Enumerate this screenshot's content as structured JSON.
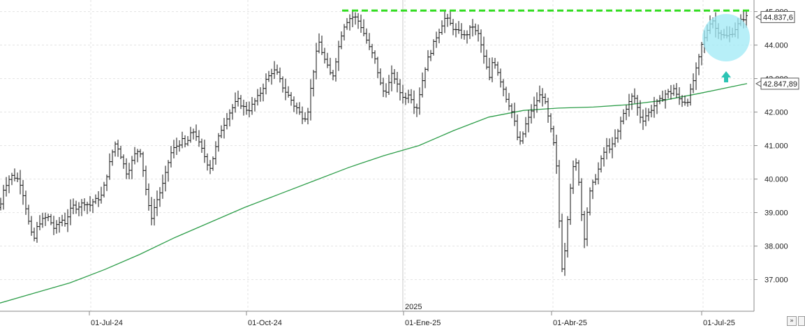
{
  "chart_data": {
    "type": "bar",
    "subtype": "ohlc",
    "title": "",
    "xlabel": "",
    "ylabel": "",
    "ylim": [
      36000,
      45000
    ],
    "y_ticks": [
      {
        "value": 37000,
        "label": "37.000"
      },
      {
        "value": 38000,
        "label": "38.000"
      },
      {
        "value": 39000,
        "label": "39.000"
      },
      {
        "value": 40000,
        "label": "40.000"
      },
      {
        "value": 41000,
        "label": "41.000"
      },
      {
        "value": 42000,
        "label": "42.000"
      },
      {
        "value": 43000,
        "label": "43.000"
      },
      {
        "value": 44000,
        "label": "44.000"
      },
      {
        "value": 45000,
        "label": "45.000"
      }
    ],
    "x_ticks": [
      "01-Jul-24",
      "01-Oct-24",
      "01-Ene-25",
      "01-Abr-25",
      "01-Jul-25"
    ],
    "year_label": "2025",
    "last_price": {
      "value": 44837.6,
      "label": "44.837,6"
    },
    "moving_average": {
      "value": 42847.89,
      "label": "42.847,89",
      "color": "#2e9e4a"
    },
    "resistance_level": {
      "value": 45000,
      "color": "#33dd22"
    },
    "price_color": "#111111",
    "highlight_circle_color": "#9fe9f5",
    "arrow_color": "#2cc4b4",
    "grid": true,
    "price_path": [
      [
        0,
        39150
      ],
      [
        5,
        39700
      ],
      [
        10,
        39900
      ],
      [
        16,
        40100
      ],
      [
        22,
        40050
      ],
      [
        28,
        39950
      ],
      [
        33,
        39550
      ],
      [
        38,
        39050
      ],
      [
        43,
        38500
      ],
      [
        48,
        38150
      ],
      [
        53,
        38550
      ],
      [
        58,
        38750
      ],
      [
        63,
        38800
      ],
      [
        68,
        38900
      ],
      [
        73,
        38700
      ],
      [
        78,
        38500
      ],
      [
        83,
        38650
      ],
      [
        88,
        38800
      ],
      [
        93,
        38700
      ],
      [
        98,
        38950
      ],
      [
        104,
        39200
      ],
      [
        110,
        39150
      ],
      [
        116,
        39250
      ],
      [
        122,
        39300
      ],
      [
        128,
        39200
      ],
      [
        134,
        39350
      ],
      [
        140,
        39400
      ],
      [
        145,
        39500
      ],
      [
        150,
        39850
      ],
      [
        155,
        40300
      ],
      [
        160,
        40750
      ],
      [
        165,
        41050
      ],
      [
        170,
        40900
      ],
      [
        176,
        40500
      ],
      [
        181,
        40200
      ],
      [
        186,
        40350
      ],
      [
        191,
        40650
      ],
      [
        196,
        40850
      ],
      [
        201,
        40800
      ],
      [
        206,
        40150
      ],
      [
        211,
        39400
      ],
      [
        216,
        38800
      ],
      [
        221,
        39150
      ],
      [
        226,
        39450
      ],
      [
        231,
        39700
      ],
      [
        236,
        40050
      ],
      [
        241,
        40500
      ],
      [
        246,
        40850
      ],
      [
        251,
        40950
      ],
      [
        256,
        41050
      ],
      [
        261,
        41150
      ],
      [
        266,
        41000
      ],
      [
        271,
        41250
      ],
      [
        276,
        41450
      ],
      [
        281,
        41300
      ],
      [
        286,
        41000
      ],
      [
        291,
        40800
      ],
      [
        296,
        40500
      ],
      [
        301,
        40350
      ],
      [
        306,
        40700
      ],
      [
        311,
        41100
      ],
      [
        316,
        41450
      ],
      [
        321,
        41650
      ],
      [
        326,
        41900
      ],
      [
        331,
        42050
      ],
      [
        336,
        42250
      ],
      [
        341,
        42350
      ],
      [
        346,
        42200
      ],
      [
        351,
        42100
      ],
      [
        356,
        42050
      ],
      [
        361,
        42200
      ],
      [
        366,
        42350
      ],
      [
        371,
        42500
      ],
      [
        376,
        42700
      ],
      [
        381,
        42950
      ],
      [
        386,
        43100
      ],
      [
        391,
        43250
      ],
      [
        396,
        43200
      ],
      [
        401,
        42950
      ],
      [
        406,
        42700
      ],
      [
        411,
        42550
      ],
      [
        416,
        42400
      ],
      [
        421,
        42200
      ],
      [
        426,
        42100
      ],
      [
        431,
        41900
      ],
      [
        436,
        41800
      ],
      [
        441,
        42050
      ],
      [
        446,
        42850
      ],
      [
        451,
        43500
      ],
      [
        456,
        44150
      ],
      [
        461,
        43800
      ],
      [
        466,
        43500
      ],
      [
        471,
        43250
      ],
      [
        476,
        43000
      ],
      [
        481,
        43550
      ],
      [
        486,
        44050
      ],
      [
        491,
        44500
      ],
      [
        496,
        44700
      ],
      [
        501,
        44800
      ],
      [
        506,
        44850
      ],
      [
        511,
        44800
      ],
      [
        516,
        44600
      ],
      [
        521,
        44350
      ],
      [
        526,
        44100
      ],
      [
        531,
        43800
      ],
      [
        536,
        43650
      ],
      [
        541,
        43200
      ],
      [
        546,
        42750
      ],
      [
        551,
        42550
      ],
      [
        556,
        42800
      ],
      [
        561,
        43100
      ],
      [
        566,
        43000
      ],
      [
        571,
        42650
      ],
      [
        576,
        42500
      ],
      [
        581,
        42400
      ],
      [
        586,
        42600
      ],
      [
        591,
        42300
      ],
      [
        596,
        42050
      ],
      [
        601,
        42550
      ],
      [
        606,
        43050
      ],
      [
        611,
        43500
      ],
      [
        616,
        43750
      ],
      [
        621,
        44050
      ],
      [
        626,
        44300
      ],
      [
        631,
        44500
      ],
      [
        636,
        44800
      ],
      [
        641,
        44750
      ],
      [
        646,
        44600
      ],
      [
        651,
        44450
      ],
      [
        656,
        44400
      ],
      [
        661,
        44350
      ],
      [
        666,
        44250
      ],
      [
        671,
        44400
      ],
      [
        676,
        44600
      ],
      [
        681,
        44400
      ],
      [
        686,
        44300
      ],
      [
        691,
        43800
      ],
      [
        696,
        43400
      ],
      [
        701,
        43000
      ],
      [
        706,
        43600
      ],
      [
        711,
        43350
      ],
      [
        716,
        43000
      ],
      [
        721,
        42700
      ],
      [
        726,
        42350
      ],
      [
        731,
        42150
      ],
      [
        736,
        41800
      ],
      [
        741,
        41250
      ],
      [
        746,
        41050
      ],
      [
        751,
        41550
      ],
      [
        756,
        41750
      ],
      [
        761,
        42050
      ],
      [
        766,
        42200
      ],
      [
        771,
        42450
      ],
      [
        776,
        42550
      ],
      [
        781,
        42250
      ],
      [
        786,
        41750
      ],
      [
        791,
        41250
      ],
      [
        796,
        40750
      ],
      [
        801,
        38750
      ],
      [
        804,
        37300
      ],
      [
        807,
        37500
      ],
      [
        811,
        38300
      ],
      [
        815,
        39400
      ],
      [
        819,
        40150
      ],
      [
        823,
        40500
      ],
      [
        827,
        40400
      ],
      [
        831,
        39500
      ],
      [
        835,
        38400
      ],
      [
        838,
        38200
      ],
      [
        842,
        39300
      ],
      [
        846,
        39700
      ],
      [
        850,
        39900
      ],
      [
        855,
        40150
      ],
      [
        860,
        40500
      ],
      [
        865,
        40800
      ],
      [
        870,
        41000
      ],
      [
        875,
        40900
      ],
      [
        880,
        41150
      ],
      [
        885,
        41400
      ],
      [
        890,
        41800
      ],
      [
        895,
        42050
      ],
      [
        900,
        42250
      ],
      [
        905,
        42450
      ],
      [
        910,
        42400
      ],
      [
        915,
        41950
      ],
      [
        920,
        41750
      ],
      [
        925,
        41900
      ],
      [
        930,
        42000
      ],
      [
        935,
        42150
      ],
      [
        940,
        42250
      ],
      [
        945,
        42350
      ],
      [
        950,
        42450
      ],
      [
        955,
        42600
      ],
      [
        960,
        42550
      ],
      [
        965,
        42700
      ],
      [
        970,
        42450
      ],
      [
        975,
        42350
      ],
      [
        980,
        42300
      ],
      [
        985,
        42350
      ],
      [
        990,
        42700
      ],
      [
        995,
        43100
      ],
      [
        1000,
        43500
      ],
      [
        1005,
        44000
      ],
      [
        1010,
        44250
      ],
      [
        1015,
        44600
      ],
      [
        1020,
        44800
      ],
      [
        1025,
        44500
      ],
      [
        1030,
        44400
      ],
      [
        1035,
        44300
      ],
      [
        1040,
        44250
      ],
      [
        1045,
        44300
      ],
      [
        1050,
        44400
      ],
      [
        1055,
        44550
      ],
      [
        1060,
        44700
      ],
      [
        1065,
        44800
      ],
      [
        1070,
        44850
      ]
    ],
    "ma_path": [
      [
        0,
        36300
      ],
      [
        50,
        36600
      ],
      [
        100,
        36900
      ],
      [
        150,
        37300
      ],
      [
        200,
        37750
      ],
      [
        250,
        38250
      ],
      [
        300,
        38700
      ],
      [
        350,
        39150
      ],
      [
        400,
        39550
      ],
      [
        450,
        39950
      ],
      [
        500,
        40350
      ],
      [
        550,
        40700
      ],
      [
        600,
        41000
      ],
      [
        650,
        41450
      ],
      [
        700,
        41850
      ],
      [
        750,
        42050
      ],
      [
        800,
        42120
      ],
      [
        850,
        42150
      ],
      [
        900,
        42220
      ],
      [
        950,
        42350
      ],
      [
        1000,
        42550
      ],
      [
        1070,
        42850
      ]
    ]
  }
}
